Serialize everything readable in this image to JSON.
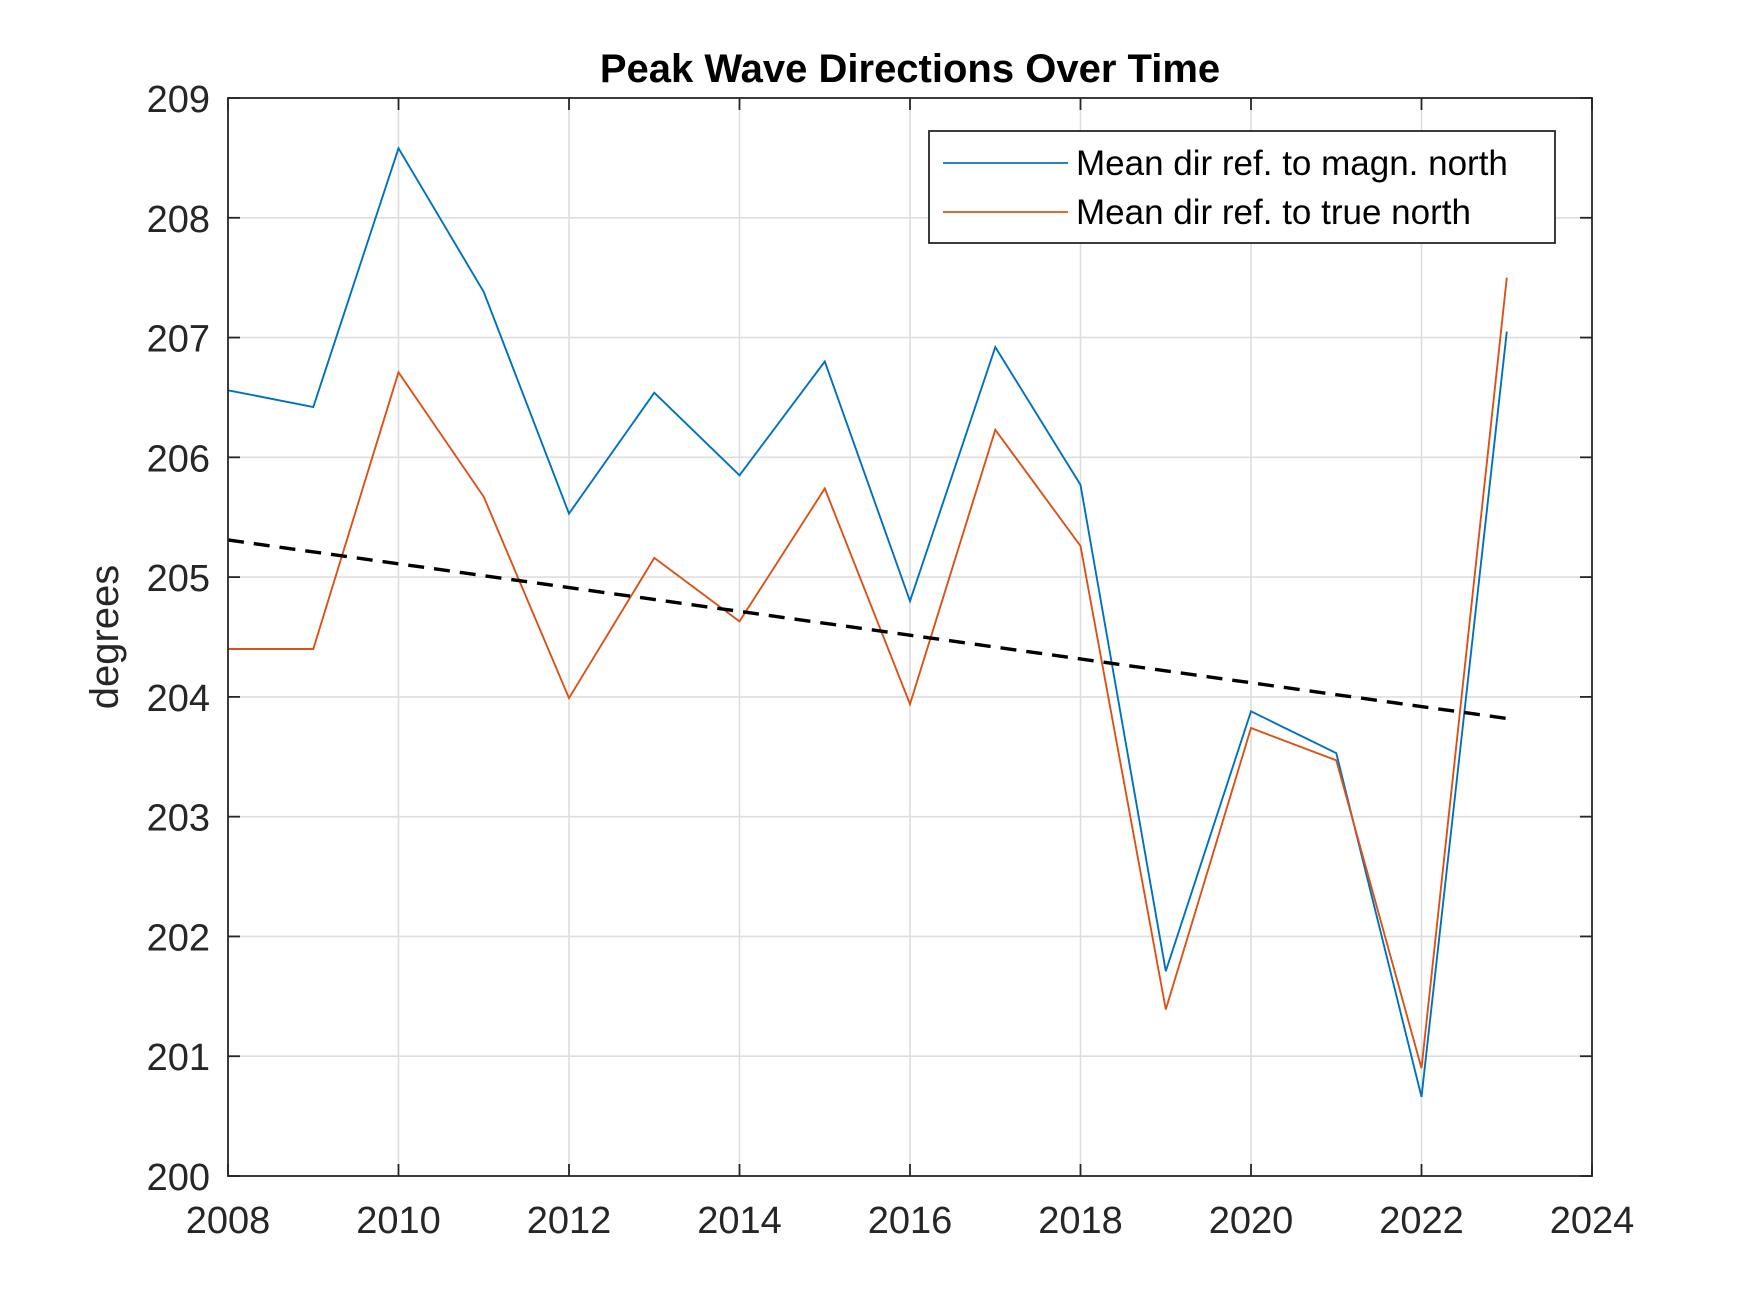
{
  "chart_data": {
    "type": "line",
    "title": "Peak Wave Directions Over Time",
    "xlabel": "",
    "ylabel": "degrees",
    "xlim": [
      2008,
      2024
    ],
    "ylim": [
      200,
      209
    ],
    "xticks": [
      2008,
      2010,
      2012,
      2014,
      2016,
      2018,
      2020,
      2022,
      2024
    ],
    "yticks": [
      200,
      201,
      202,
      203,
      204,
      205,
      206,
      207,
      208,
      209
    ],
    "grid": true,
    "legend_position": "top-right",
    "x": [
      2008,
      2009,
      2010,
      2011,
      2012,
      2013,
      2014,
      2015,
      2016,
      2017,
      2018,
      2019,
      2020,
      2021,
      2022,
      2023
    ],
    "series": [
      {
        "name": "Mean dir ref. to magn. north",
        "color": "#0072BD",
        "values": [
          206.56,
          206.42,
          208.58,
          207.38,
          205.53,
          206.54,
          205.85,
          206.8,
          204.8,
          206.92,
          205.77,
          201.71,
          203.88,
          203.53,
          200.66,
          207.05
        ]
      },
      {
        "name": "Mean dir ref. to true north",
        "color": "#D95319",
        "values": [
          204.4,
          204.4,
          206.71,
          205.67,
          203.99,
          205.16,
          204.63,
          205.74,
          203.94,
          206.23,
          205.26,
          201.39,
          203.74,
          203.47,
          200.9,
          207.5
        ]
      }
    ],
    "trend": {
      "style": "dashed",
      "color": "#000000",
      "x": [
        2008,
        2023
      ],
      "values": [
        205.31,
        203.82
      ]
    }
  }
}
